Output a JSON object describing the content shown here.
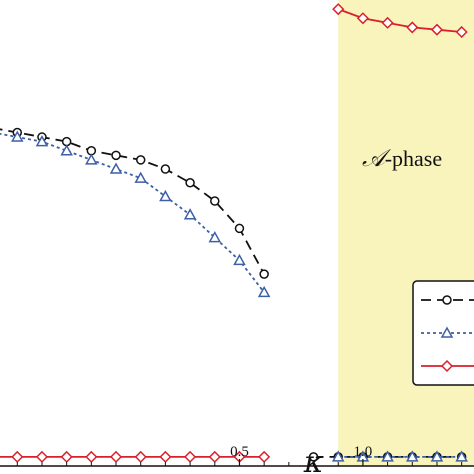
{
  "chart_data": {
    "type": "line",
    "xlabel": "κ",
    "ylabel": "",
    "title": "",
    "xlim": [
      -0.47,
      1.45
    ],
    "ylim": [
      -0.02,
      1.0
    ],
    "x_ticks": [
      0.5,
      1.0
    ],
    "x_tick_labels": [
      "0.5",
      "1.0"
    ],
    "shaded_region": {
      "x": [
        0.9,
        1.45
      ],
      "color": "#f8f4bc"
    },
    "annotation": {
      "symbol": "𝒜",
      "text": "-phase"
    },
    "legend": {
      "position": "right",
      "entries": [
        "",
        "",
        ""
      ]
    },
    "series": [
      {
        "color": "#111111",
        "dash": "10,6",
        "marker": "circle",
        "x": [
          -0.5,
          -0.4,
          -0.3,
          -0.2,
          -0.1,
          0.0,
          0.1,
          0.2,
          0.3,
          0.4,
          0.5,
          0.6
        ],
        "y": [
          0.72,
          0.71,
          0.7,
          0.69,
          0.67,
          0.66,
          0.65,
          0.63,
          0.6,
          0.56,
          0.5,
          0.4
        ]
      },
      {
        "color": "#111111",
        "dash": "10,6",
        "marker": "circle",
        "x": [
          0.8,
          0.9,
          1.0,
          1.1,
          1.2,
          1.3,
          1.4
        ],
        "y": [
          0.0,
          0.0,
          0.0,
          0.0,
          0.0,
          0.0,
          0.0
        ]
      },
      {
        "color": "#3d5fa6",
        "dash": "3,3",
        "marker": "triangle",
        "x": [
          -0.5,
          -0.4,
          -0.3,
          -0.2,
          -0.1,
          0.0,
          0.1,
          0.2,
          0.3,
          0.4,
          0.5,
          0.6
        ],
        "y": [
          0.71,
          0.7,
          0.69,
          0.67,
          0.65,
          0.63,
          0.61,
          0.57,
          0.53,
          0.48,
          0.43,
          0.36
        ]
      },
      {
        "color": "#3d5fa6",
        "dash": "3,3",
        "marker": "triangle",
        "x": [
          0.9,
          1.0,
          1.1,
          1.2,
          1.3,
          1.4
        ],
        "y": [
          0.0,
          0.0,
          0.0,
          0.0,
          0.0,
          0.0
        ]
      },
      {
        "color": "#d9202a",
        "dash": "",
        "marker": "diamond",
        "x": [
          -0.5,
          -0.4,
          -0.3,
          -0.2,
          -0.1,
          0.0,
          0.1,
          0.2,
          0.3,
          0.4,
          0.5,
          0.6
        ],
        "y": [
          0.0,
          0.0,
          0.0,
          0.0,
          0.0,
          0.0,
          0.0,
          0.0,
          0.0,
          0.0,
          0.0,
          0.0
        ]
      },
      {
        "color": "#d9202a",
        "dash": "",
        "marker": "diamond",
        "x": [
          0.9,
          1.0,
          1.1,
          1.2,
          1.3,
          1.4
        ],
        "y": [
          0.98,
          0.96,
          0.95,
          0.94,
          0.935,
          0.93
        ]
      }
    ]
  }
}
